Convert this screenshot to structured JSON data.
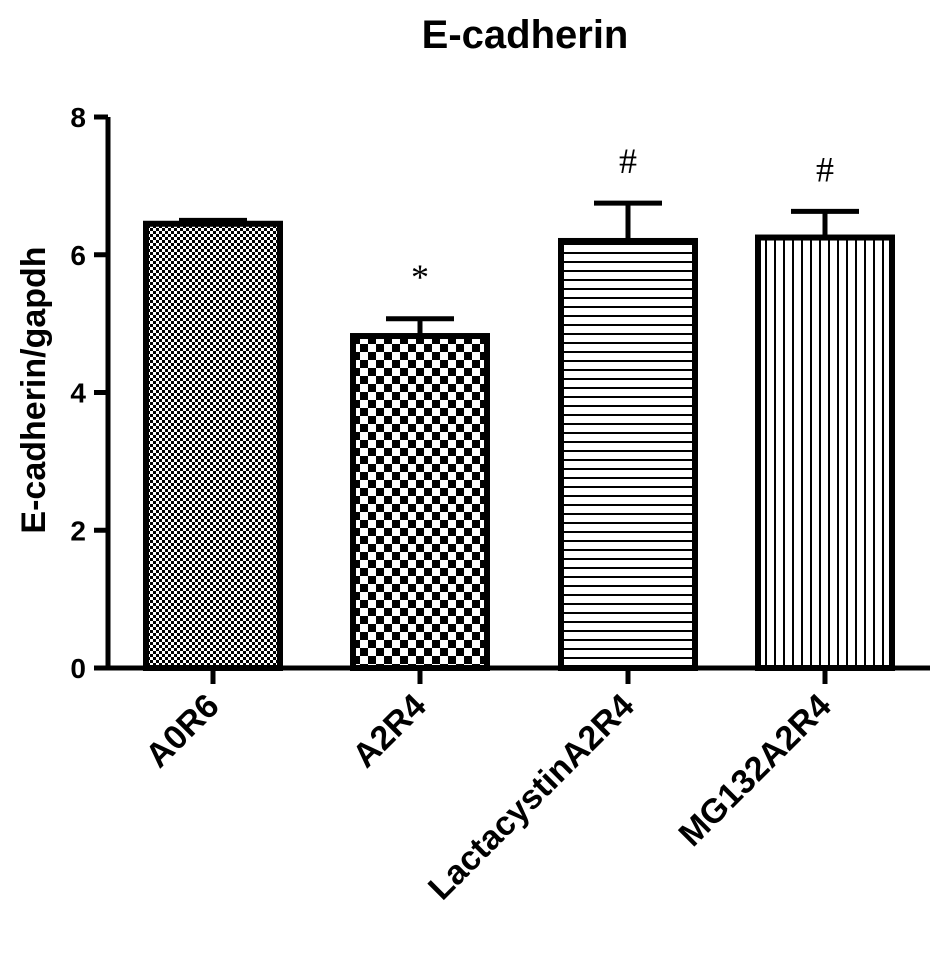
{
  "chart_data": {
    "type": "bar",
    "title": "E-cadherin",
    "xlabel": "",
    "ylabel": "E-cadherin/gapdh",
    "ylim": [
      0,
      8
    ],
    "yticks": [
      "0",
      "2",
      "4",
      "6",
      "8"
    ],
    "categories": [
      "A0R6",
      "A2R4",
      "LactacystinA2R4",
      "MG132A2R4"
    ],
    "values": [
      6.45,
      4.82,
      6.2,
      6.25
    ],
    "errors": [
      0.05,
      0.25,
      0.55,
      0.38
    ],
    "annotations": [
      "",
      "*",
      "#",
      "#"
    ],
    "patterns": [
      "fine-checker",
      "checker",
      "horizontal-stripes",
      "vertical-stripes"
    ],
    "colors": {
      "bar_stroke": "#000000",
      "bar_fill": "#ffffff",
      "axis": "#000000"
    },
    "grid": false,
    "legend": "none"
  }
}
